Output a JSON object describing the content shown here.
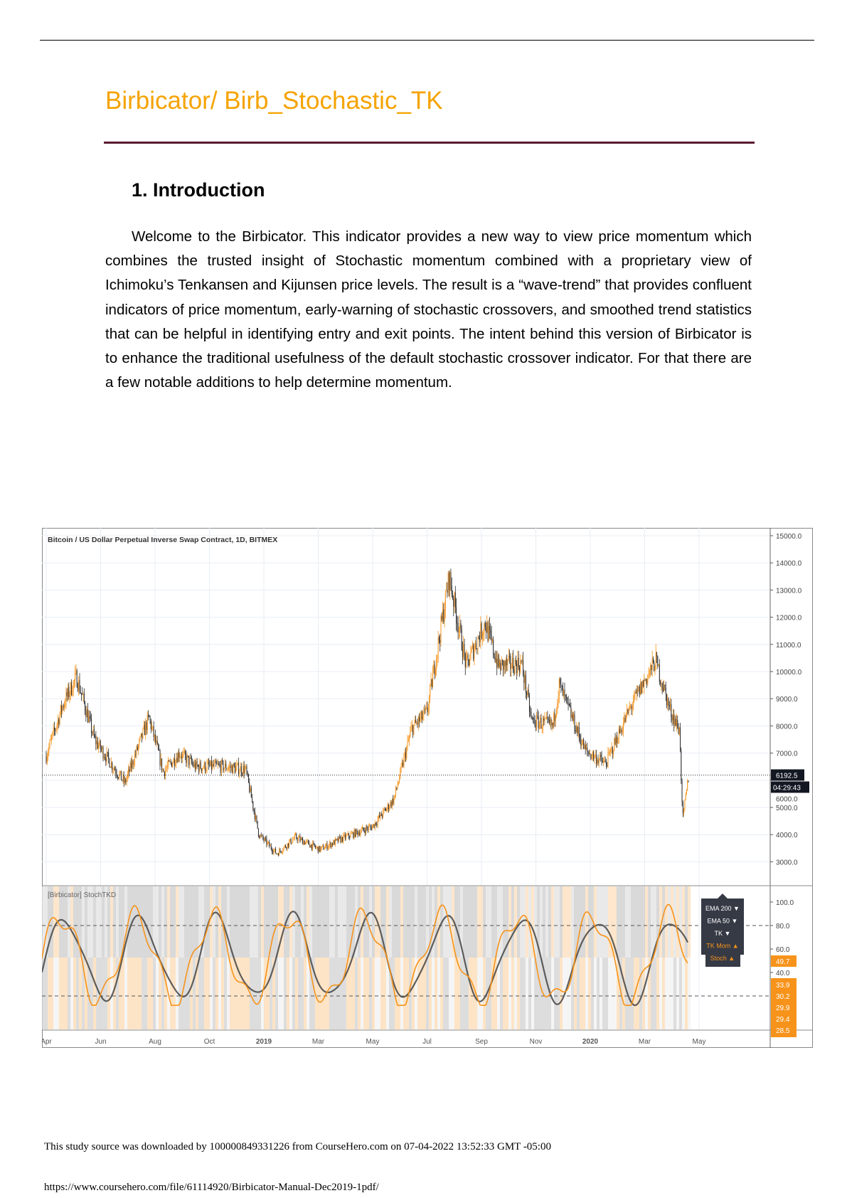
{
  "document": {
    "title": "Birbicator/ Birb_Stochastic_TK",
    "section_heading": "1. Introduction",
    "paragraph": "Welcome to the Birbicator. This indicator provides a new way to view price momentum which combines the trusted insight of Stochastic momentum combined with a proprietary view of Ichimoku’s Tenkansen and Kijunsen price levels. The result is a “wave-trend” that provides confluent indicators of price momentum, early-warning of stochastic crossovers, and smoothed trend statistics that can be helpful in identifying entry and exit points. The intent behind this version of Birbicator is to enhance the traditional usefulness of the default stochastic crossover indicator. For that there are a few notable additions to help determine momentum.",
    "footer_download": "This study source was downloaded by 100000849331226 from CourseHero.com on 07-04-2022 13:52:33 GMT -05:00",
    "footer_url": "https://www.coursehero.com/file/61114920/Birbicator-Manual-Dec2019-1pdf/"
  },
  "colors": {
    "title": "#f5a300",
    "rule": "#5a1a30",
    "up": "#f7931a",
    "down": "#2b2b2b",
    "label_bg": "#f7931a",
    "price_label_bg": "#131722"
  },
  "chart_data": [
    {
      "type": "candlestick",
      "title": "Bitcoin / US Dollar Perpetual Inverse Swap Contract, 1D, BITMEX",
      "ylim": [
        3000,
        15000
      ],
      "y_ticks": [
        "15000.0",
        "14000.0",
        "13000.0",
        "12000.0",
        "11000.0",
        "10000.0",
        "9000.0",
        "8000.0",
        "7000.0",
        "6000.0",
        "5000.0",
        "4000.0",
        "3000.0"
      ],
      "x_ticks": [
        "Apr",
        "Jun",
        "Aug",
        "Oct",
        "2019",
        "Mar",
        "May",
        "Jul",
        "Sep",
        "Nov",
        "2020",
        "Mar",
        "May"
      ],
      "grid": true,
      "approx_close": [
        [
          "2018-04-01",
          6900
        ],
        [
          "2018-04-20",
          8800
        ],
        [
          "2018-05-05",
          9800
        ],
        [
          "2018-05-25",
          7500
        ],
        [
          "2018-06-15",
          6500
        ],
        [
          "2018-06-28",
          5900
        ],
        [
          "2018-07-25",
          8300
        ],
        [
          "2018-08-10",
          6300
        ],
        [
          "2018-08-28",
          7000
        ],
        [
          "2018-09-15",
          6500
        ],
        [
          "2018-10-15",
          6500
        ],
        [
          "2018-11-10",
          6400
        ],
        [
          "2018-11-25",
          4000
        ],
        [
          "2018-12-15",
          3300
        ],
        [
          "2019-01-05",
          3900
        ],
        [
          "2019-02-01",
          3450
        ],
        [
          "2019-03-01",
          3900
        ],
        [
          "2019-04-01",
          4300
        ],
        [
          "2019-04-25",
          5300
        ],
        [
          "2019-05-15",
          7900
        ],
        [
          "2019-06-01",
          8500
        ],
        [
          "2019-06-26",
          13500
        ],
        [
          "2019-07-15",
          10200
        ],
        [
          "2019-08-05",
          11800
        ],
        [
          "2019-08-20",
          10200
        ],
        [
          "2019-09-15",
          10300
        ],
        [
          "2019-09-26",
          8200
        ],
        [
          "2019-10-20",
          8000
        ],
        [
          "2019-10-27",
          9500
        ],
        [
          "2019-11-25",
          7100
        ],
        [
          "2019-12-18",
          6600
        ],
        [
          "2020-01-15",
          8700
        ],
        [
          "2020-02-12",
          10400
        ],
        [
          "2020-02-28",
          8600
        ],
        [
          "2020-03-10",
          7800
        ],
        [
          "2020-03-13",
          4500
        ],
        [
          "2020-03-20",
          6192.5
        ]
      ],
      "last_price": "6192.5",
      "countdown": "04:29:43"
    },
    {
      "type": "line",
      "title": "[Birbicator] StochTKD",
      "ylim": [
        20,
        100
      ],
      "y_ticks": [
        "100.0",
        "80.0",
        "60.0",
        "40.0"
      ],
      "levels": [
        80,
        20
      ],
      "value_labels": [
        "49.7",
        "33.9",
        "30.2",
        "29.9",
        "29.4",
        "28.5"
      ],
      "legend": [
        {
          "label": "EMA 200",
          "direction": "down",
          "color": "#ffffff"
        },
        {
          "label": "EMA 50",
          "direction": "down",
          "color": "#ffffff"
        },
        {
          "label": "TK",
          "direction": "down",
          "color": "#ffffff"
        },
        {
          "label": "TK Mom",
          "direction": "up",
          "color": "#f7931a"
        },
        {
          "label": "Stoch",
          "direction": "up",
          "color": "#f7931a"
        }
      ]
    }
  ]
}
